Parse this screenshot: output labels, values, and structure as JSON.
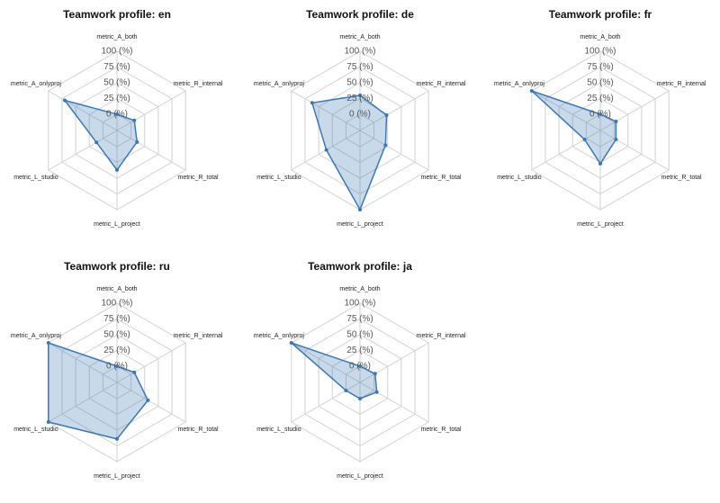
{
  "chart_data": [
    {
      "type": "radar",
      "title": "Teamwork profile: en",
      "categories": [
        "metric_A_both",
        "metric_R_internal",
        "metric_R_total",
        "metric_L_project",
        "metric_L_studio",
        "metric_A_onlyproj"
      ],
      "values": [
        0,
        6,
        11,
        37,
        12,
        70
      ],
      "color": "#3a78b5",
      "ylim": [
        0,
        100
      ],
      "yticks": [
        {
          "value": 0,
          "label": "0 (%)"
        },
        {
          "value": 25,
          "label": "25 (%)"
        },
        {
          "value": 50,
          "label": "50 (%)"
        },
        {
          "value": 75,
          "label": "75 (%)"
        },
        {
          "value": 100,
          "label": "100 (%)"
        }
      ],
      "grid": true
    },
    {
      "type": "radar",
      "title": "Teamwork profile: de",
      "categories": [
        "metric_A_both",
        "metric_R_internal",
        "metric_R_total",
        "metric_L_project",
        "metric_L_studio",
        "metric_A_onlyproj"
      ],
      "values": [
        30,
        23,
        21,
        100,
        36,
        62
      ],
      "color": "#3a78b5",
      "ylim": [
        0,
        100
      ],
      "yticks": [
        {
          "value": 0,
          "label": "0 (%)"
        },
        {
          "value": 25,
          "label": "25 (%)"
        },
        {
          "value": 50,
          "label": "50 (%)"
        },
        {
          "value": 75,
          "label": "75 (%)"
        },
        {
          "value": 100,
          "label": "100 (%)"
        }
      ],
      "grid": true
    },
    {
      "type": "radar",
      "title": "Teamwork profile: fr",
      "categories": [
        "metric_A_both",
        "metric_R_internal",
        "metric_R_total",
        "metric_L_project",
        "metric_L_studio",
        "metric_A_onlyproj"
      ],
      "values": [
        0,
        3,
        3,
        27,
        3,
        100
      ],
      "color": "#3a78b5",
      "ylim": [
        0,
        100
      ],
      "yticks": [
        {
          "value": 0,
          "label": "0 (%)"
        },
        {
          "value": 25,
          "label": "25 (%)"
        },
        {
          "value": 50,
          "label": "50 (%)"
        },
        {
          "value": 75,
          "label": "75 (%)"
        },
        {
          "value": 100,
          "label": "100 (%)"
        }
      ],
      "grid": true
    },
    {
      "type": "radar",
      "title": "Teamwork profile: ru",
      "categories": [
        "metric_A_both",
        "metric_R_internal",
        "metric_R_total",
        "metric_L_project",
        "metric_L_studio",
        "metric_A_onlyproj"
      ],
      "values": [
        0,
        6,
        31,
        64,
        100,
        100
      ],
      "color": "#3a78b5",
      "ylim": [
        0,
        100
      ],
      "yticks": [
        {
          "value": 0,
          "label": "0 (%)"
        },
        {
          "value": 25,
          "label": "25 (%)"
        },
        {
          "value": 50,
          "label": "50 (%)"
        },
        {
          "value": 75,
          "label": "75 (%)"
        },
        {
          "value": 100,
          "label": "100 (%)"
        }
      ],
      "grid": true
    },
    {
      "type": "radar",
      "title": "Teamwork profile: ja",
      "categories": [
        "metric_A_both",
        "metric_R_internal",
        "metric_R_total",
        "metric_L_project",
        "metric_L_studio",
        "metric_A_onlyproj"
      ],
      "values": [
        0,
        2,
        5,
        0,
        0,
        100
      ],
      "color": "#3a78b5",
      "ylim": [
        0,
        100
      ],
      "yticks": [
        {
          "value": 0,
          "label": "0 (%)"
        },
        {
          "value": 25,
          "label": "25 (%)"
        },
        {
          "value": 50,
          "label": "50 (%)"
        },
        {
          "value": 75,
          "label": "75 (%)"
        },
        {
          "value": 100,
          "label": "100 (%)"
        }
      ],
      "grid": true
    }
  ]
}
